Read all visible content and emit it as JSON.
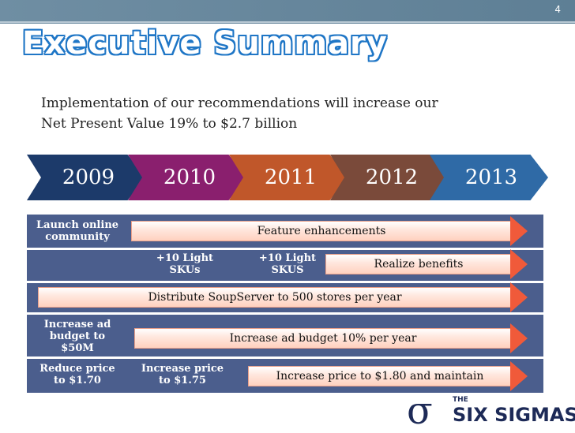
{
  "slide": {
    "page_number": "4",
    "title": "Executive Summary",
    "intro_line1": "Implementation of our recommendations will increase our",
    "intro_line2": "Net Present Value 19% to $2.7 billion"
  },
  "years": [
    {
      "label": "2009",
      "color": "#1c3a6a"
    },
    {
      "label": "2010",
      "color": "#8a1f6e"
    },
    {
      "label": "2011",
      "color": "#c0572a"
    },
    {
      "label": "2012",
      "color": "#7a4a3a"
    },
    {
      "label": "2013",
      "color": "#2f6aa6"
    }
  ],
  "rows": [
    {
      "label_a": "Launch online",
      "label_b": "community",
      "arrow": "Feature enhancements"
    },
    {
      "label_2010_a": "+10 Light",
      "label_2010_b": "SKUs",
      "label_2011_a": "+10 Light",
      "label_2011_b": "SKUS",
      "arrow": "Realize benefits"
    },
    {
      "arrow": "Distribute SoupServer to 500 stores per year"
    },
    {
      "label_a": "Increase ad",
      "label_b": "budget to",
      "label_c": "$50M",
      "arrow": "Increase ad budget 10% per year"
    },
    {
      "label_a": "Reduce price",
      "label_b": "to $1.70",
      "label_2010_a": "Increase price",
      "label_2010_b": "to $1.75",
      "arrow": "Increase price to $1.80 and maintain"
    }
  ],
  "logo": {
    "symbol": "σ",
    "small": "THE",
    "name": "SIX SIGMAS"
  },
  "colors": {
    "title_outline": "#1f76c6",
    "board": "#4b5e8d",
    "arrow_head": "#f05a3a",
    "topbar": "#6f8ea3"
  }
}
